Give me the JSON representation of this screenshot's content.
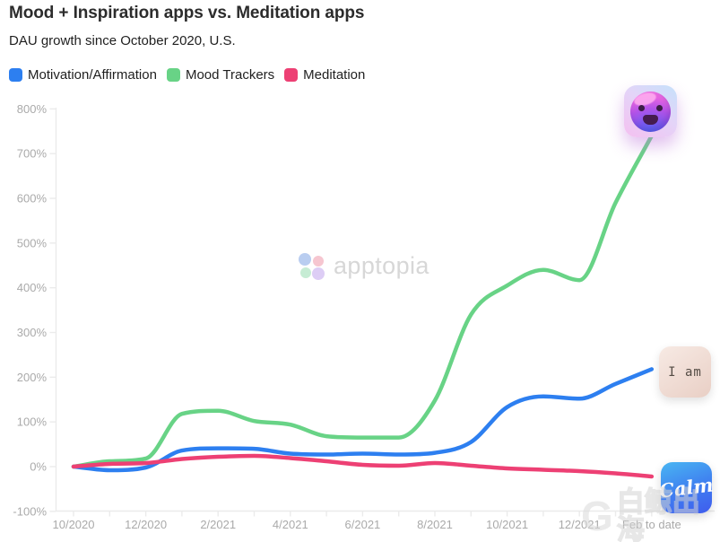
{
  "header": {
    "title": "Mood + Inspiration apps vs. Meditation apps",
    "subtitle": "DAU growth since October 2020, U.S."
  },
  "legend": {
    "items": [
      {
        "label": "Motivation/Affirmation",
        "color": "#2d7ff0"
      },
      {
        "label": "Mood Trackers",
        "color": "#68d386"
      },
      {
        "label": "Meditation",
        "color": "#ed4074"
      }
    ]
  },
  "watermarks": {
    "apptopia": {
      "text": "apptopia",
      "petal_colors": [
        "#b9cdf0",
        "#f6c6d0",
        "#c6ecd4",
        "#ddcdf5"
      ]
    },
    "corner": {
      "logo": "G",
      "text": "白鲸出海"
    }
  },
  "app_icons": {
    "mood": {
      "alt": "smiley-face gradient app icon"
    },
    "iam": {
      "label": "I am"
    },
    "calm": {
      "label": "Calm"
    }
  },
  "chart_data": {
    "type": "line",
    "title": "Mood + Inspiration apps vs. Meditation apps",
    "subtitle": "DAU growth since October 2020, U.S.",
    "unit": "%",
    "x_months": [
      "10/2020",
      "11/2020",
      "12/2020",
      "1/2021",
      "2/2021",
      "3/2021",
      "4/2021",
      "5/2021",
      "6/2021",
      "7/2021",
      "8/2021",
      "9/2021",
      "10/2021",
      "11/2021",
      "12/2021",
      "1/2022",
      "2/2022"
    ],
    "xtick_labels": [
      "10/2020",
      "12/2020",
      "2/2021",
      "4/2021",
      "6/2021",
      "8/2021",
      "10/2021",
      "12/2021",
      "Feb to date"
    ],
    "ytick_labels": [
      "-100%",
      "0%",
      "100%",
      "200%",
      "300%",
      "400%",
      "500%",
      "600%",
      "700%",
      "800%"
    ],
    "ylim": [
      -100,
      800
    ],
    "grid": false,
    "legend_position": "top-left",
    "series": [
      {
        "name": "Motivation/Affirmation",
        "color": "#2d7ff0",
        "values": [
          0,
          -8,
          -2,
          36,
          41,
          40,
          29,
          27,
          29,
          27,
          31,
          55,
          133,
          157,
          152,
          185,
          218
        ]
      },
      {
        "name": "Mood Trackers",
        "color": "#68d386",
        "values": [
          0,
          12,
          18,
          118,
          125,
          102,
          94,
          68,
          65,
          65,
          148,
          340,
          405,
          440,
          417,
          590,
          740
        ]
      },
      {
        "name": "Meditation",
        "color": "#ed4074",
        "values": [
          0,
          6,
          8,
          17,
          22,
          24,
          19,
          12,
          4,
          2,
          8,
          2,
          -4,
          -7,
          -10,
          -15,
          -22
        ]
      }
    ]
  }
}
